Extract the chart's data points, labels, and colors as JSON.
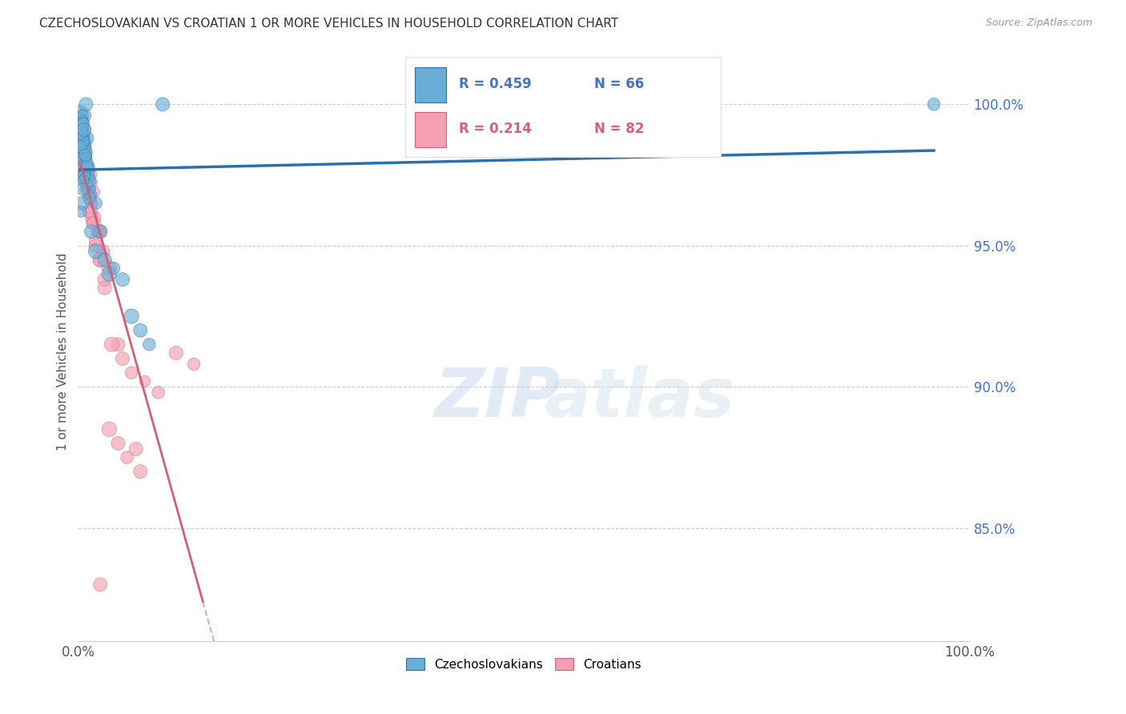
{
  "title": "CZECHOSLOVAKIAN VS CROATIAN 1 OR MORE VEHICLES IN HOUSEHOLD CORRELATION CHART",
  "source": "Source: ZipAtlas.com",
  "ylabel": "1 or more Vehicles in Household",
  "right_yticks": [
    100.0,
    95.0,
    90.0,
    85.0
  ],
  "xmin": 0.0,
  "xmax": 100.0,
  "ymin": 81.0,
  "ymax": 101.5,
  "blue_R": 0.459,
  "blue_N": 66,
  "pink_R": 0.214,
  "pink_N": 82,
  "blue_color": "#6aaed6",
  "pink_color": "#f4a0b0",
  "blue_line_color": "#2c6fad",
  "pink_line_color": "#d45f7a",
  "czech_x": [
    0.3,
    0.4,
    0.5,
    0.6,
    0.35,
    0.45,
    0.55,
    0.65,
    0.25,
    0.7,
    0.3,
    0.5,
    0.6,
    0.8,
    1.0,
    1.2,
    1.5,
    2.0,
    2.5,
    3.5,
    1.0,
    0.8,
    0.6,
    0.7,
    0.9,
    1.1,
    1.3,
    0.4,
    0.35,
    0.45,
    0.55,
    0.65,
    0.75,
    0.85,
    0.95,
    1.05,
    1.15,
    1.25,
    1.35,
    0.3,
    0.4,
    0.5,
    0.7,
    0.6,
    0.55,
    0.45,
    0.35,
    1.0,
    1.5,
    2.0,
    3.0,
    4.0,
    5.0,
    6.0,
    7.0,
    8.0,
    9.5,
    0.3,
    0.25,
    0.4,
    0.5,
    0.6,
    0.7,
    0.8,
    0.9,
    96.0
  ],
  "czech_y": [
    99.2,
    99.5,
    99.6,
    99.4,
    99.3,
    99.1,
    99.0,
    98.8,
    99.7,
    99.6,
    98.5,
    98.0,
    97.5,
    97.8,
    97.3,
    97.0,
    96.8,
    96.5,
    95.5,
    94.0,
    98.8,
    98.6,
    98.4,
    97.9,
    97.6,
    97.2,
    96.7,
    99.2,
    99.1,
    99.0,
    98.9,
    98.7,
    98.5,
    98.3,
    98.1,
    97.9,
    97.7,
    97.5,
    97.3,
    99.3,
    99.0,
    98.7,
    97.5,
    97.3,
    97.0,
    96.5,
    96.2,
    97.8,
    95.5,
    94.8,
    94.5,
    94.2,
    93.8,
    92.5,
    92.0,
    91.5,
    100.0,
    99.0,
    98.5,
    99.2,
    99.4,
    99.3,
    99.1,
    98.2,
    100.0,
    100.0
  ],
  "czech_sizes": [
    30,
    20,
    25,
    20,
    25,
    30,
    20,
    25,
    35,
    30,
    25,
    20,
    30,
    20,
    25,
    30,
    20,
    25,
    30,
    35,
    30,
    25,
    30,
    20,
    25,
    20,
    25,
    30,
    20,
    25,
    30,
    20,
    25,
    30,
    20,
    25,
    30,
    20,
    25,
    20,
    25,
    30,
    25,
    20,
    25,
    30,
    20,
    25,
    30,
    35,
    30,
    25,
    30,
    35,
    30,
    25,
    30,
    30,
    25,
    30,
    20,
    25,
    30,
    25,
    30,
    25
  ],
  "croat_x": [
    0.3,
    0.5,
    0.7,
    0.4,
    0.6,
    0.8,
    0.35,
    0.45,
    0.55,
    0.65,
    0.75,
    0.85,
    0.95,
    1.1,
    1.3,
    1.5,
    1.8,
    2.2,
    2.8,
    3.5,
    4.5,
    0.3,
    0.4,
    0.5,
    0.6,
    0.7,
    0.8,
    0.9,
    1.0,
    1.2,
    1.4,
    1.6,
    2.0,
    2.5,
    3.0,
    5.0,
    6.0,
    7.5,
    9.0,
    11.0,
    13.0,
    0.35,
    0.45,
    0.55,
    0.65,
    0.75,
    0.85,
    0.3,
    0.4,
    0.5,
    0.6,
    0.7,
    0.8,
    0.9,
    1.0,
    1.5,
    2.0,
    2.5,
    3.0,
    0.3,
    0.4,
    0.5,
    1.5,
    2.5,
    3.5,
    4.5,
    5.5,
    6.5,
    7.0,
    1.2,
    1.8,
    2.3,
    3.8,
    0.35,
    0.55,
    0.75,
    0.95,
    1.15,
    1.35,
    1.55,
    1.75,
    2.5
  ],
  "croat_y": [
    99.0,
    99.3,
    99.1,
    98.8,
    98.5,
    98.2,
    99.2,
    99.0,
    98.7,
    98.4,
    98.1,
    97.8,
    97.5,
    97.2,
    96.8,
    96.5,
    96.0,
    95.5,
    94.8,
    94.2,
    91.5,
    99.1,
    98.9,
    98.6,
    98.3,
    98.0,
    97.7,
    97.4,
    97.1,
    96.7,
    96.2,
    95.8,
    95.0,
    94.5,
    93.8,
    91.0,
    90.5,
    90.2,
    89.8,
    91.2,
    90.8,
    98.8,
    98.5,
    98.2,
    97.9,
    97.6,
    97.3,
    99.0,
    98.7,
    98.4,
    98.1,
    97.8,
    97.5,
    97.2,
    97.0,
    96.0,
    95.2,
    94.5,
    93.5,
    99.2,
    98.9,
    98.5,
    96.5,
    95.5,
    88.5,
    88.0,
    87.5,
    87.8,
    87.0,
    96.2,
    95.8,
    95.5,
    91.5,
    99.0,
    98.7,
    98.4,
    98.1,
    97.8,
    97.5,
    97.2,
    96.9,
    83.0
  ],
  "croat_sizes": [
    25,
    20,
    30,
    25,
    20,
    30,
    25,
    20,
    25,
    30,
    20,
    25,
    30,
    25,
    20,
    25,
    30,
    25,
    30,
    35,
    30,
    25,
    20,
    30,
    25,
    20,
    30,
    25,
    20,
    25,
    30,
    25,
    30,
    35,
    30,
    30,
    25,
    20,
    25,
    30,
    25,
    20,
    25,
    30,
    20,
    25,
    30,
    25,
    20,
    25,
    30,
    25,
    20,
    25,
    30,
    25,
    30,
    35,
    30,
    25,
    20,
    30,
    25,
    30,
    35,
    30,
    25,
    30,
    30,
    25,
    30,
    25,
    35,
    20,
    25,
    30,
    20,
    25,
    30,
    20,
    25,
    30
  ]
}
